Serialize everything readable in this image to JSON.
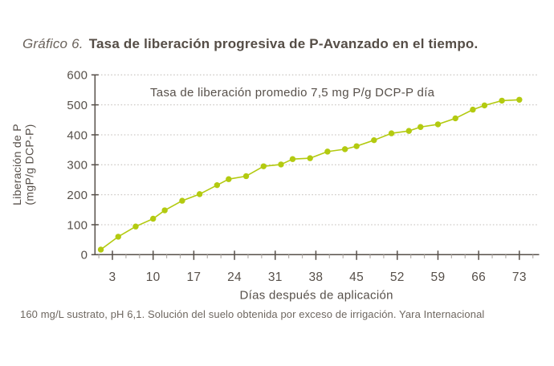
{
  "title": {
    "prefix": "Gráfico 6.",
    "text": "Tasa de liberación progresiva de P-Avanzado en el tiempo."
  },
  "footer": "160 mg/L sustrato, pH 6,1. Solución del suelo obtenida por exceso de irrigación. Yara Internacional",
  "colors": {
    "series": "#b3ca10",
    "axis": "#57504a",
    "text_dark": "#57504a",
    "text_muted": "#6e6760",
    "grid": "#ccc8c4",
    "minor_tick": "#b3aeaa"
  },
  "chart_data": {
    "type": "line",
    "annotation": "Tasa de liberación promedio 7,5 mg P/g DCP-P día",
    "xlabel": "Días después de aplicación",
    "ylabel_line1": "Liberación de P",
    "ylabel_line2": "(mgP/g DCP-P)",
    "x_ticks": [
      3,
      10,
      17,
      24,
      31,
      38,
      45,
      52,
      59,
      66,
      73
    ],
    "y_ticks": [
      0,
      100,
      200,
      300,
      400,
      500,
      600
    ],
    "xlim": [
      0,
      76.2
    ],
    "ylim": [
      0,
      600
    ],
    "grid": "dotted-horizontal",
    "legend": "none",
    "series": [
      {
        "name": "Liberación de P",
        "x": [
          1,
          4,
          7,
          10,
          12,
          15,
          18,
          21,
          23,
          26,
          29,
          32,
          34,
          37,
          40,
          43,
          45,
          48,
          51,
          54,
          56,
          59,
          62,
          65,
          67,
          70,
          73
        ],
        "y": [
          17,
          60,
          94,
          120,
          148,
          180,
          202,
          232,
          252,
          262,
          295,
          301,
          319,
          322,
          344,
          352,
          362,
          382,
          405,
          413,
          426,
          435,
          455,
          484,
          498,
          514,
          517
        ]
      }
    ]
  }
}
